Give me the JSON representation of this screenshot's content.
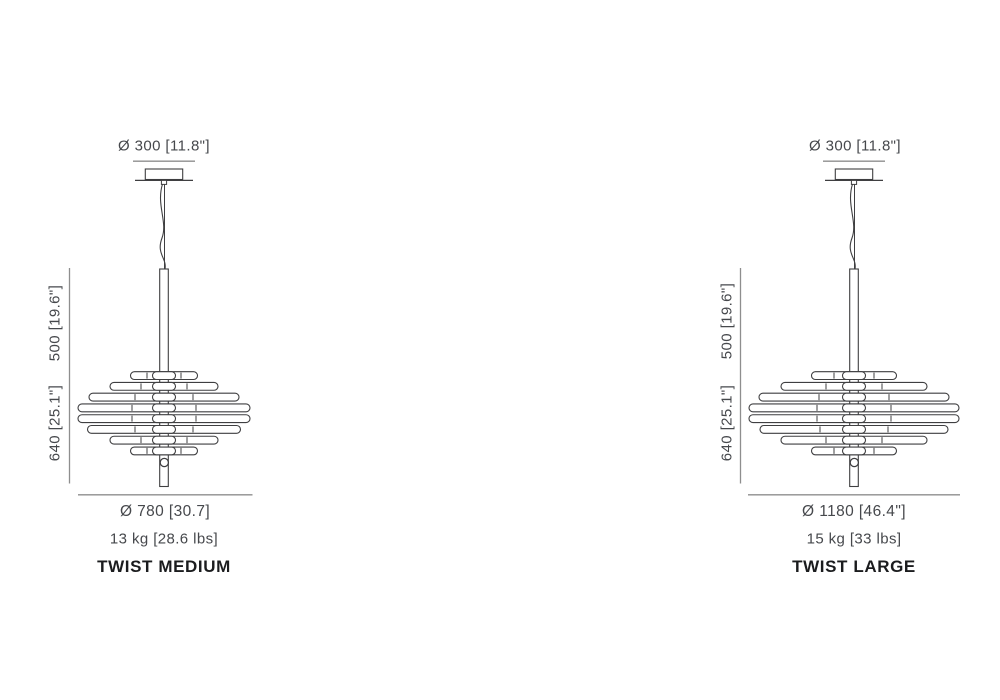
{
  "page": {
    "background": "#ffffff",
    "type": "pendant lamp dimension spec sheet"
  },
  "colors": {
    "drawing_line": "#3f3f41",
    "dimension_line": "#8e8e8e",
    "text": "#46484c",
    "title_text": "#1b1c1e"
  },
  "figures": [
    {
      "canopy_diameter": "Ø 300 [11.8\"]",
      "suspension_height": "500 [19.6\"]",
      "body_height": "640 [25.1\"]",
      "diameter": "Ø 780 [30.7]",
      "weight": "13 kg [28.6 lbs]",
      "title": "TWIST MEDIUM"
    },
    {
      "canopy_diameter": "Ø 300 [11.8\"]",
      "suspension_height": "500 [19.6\"]",
      "body_height": "640 [25.1\"]",
      "diameter": "Ø 1180 [46.4\"]",
      "weight": "15 kg [33 lbs]",
      "title": "TWIST LARGE"
    }
  ]
}
